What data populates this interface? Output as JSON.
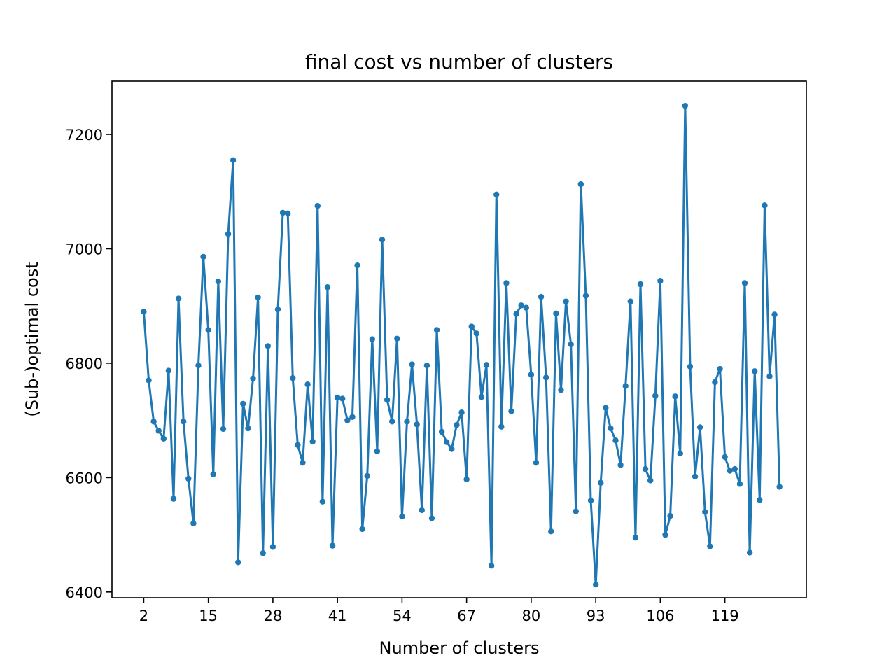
{
  "chart_data": {
    "type": "line",
    "title": "final cost vs number of clusters",
    "xlabel": "Number of clusters",
    "ylabel": "(Sub-)optimal cost",
    "x_start": 2,
    "x_step": 1,
    "xticks": [
      2,
      15,
      28,
      41,
      54,
      67,
      80,
      93,
      106,
      119
    ],
    "yticks": [
      6400,
      6600,
      6800,
      7000,
      7200
    ],
    "xlim": [
      -4.4,
      135.4
    ],
    "ylim": [
      6390,
      7293
    ],
    "grid": false,
    "legend": "none",
    "series": [
      {
        "color": "#1f77b4",
        "marker": "circle",
        "values": [
          6890,
          6770,
          6698,
          6682,
          6668,
          6787,
          6563,
          6913,
          6698,
          6598,
          6520,
          6796,
          6986,
          6858,
          6606,
          6943,
          6685,
          7026,
          7155,
          6452,
          6729,
          6686,
          6773,
          6915,
          6468,
          6830,
          6479,
          6894,
          7063,
          7062,
          6774,
          6657,
          6626,
          6763,
          6663,
          7075,
          6558,
          6933,
          6481,
          6740,
          6738,
          6700,
          6706,
          6971,
          6510,
          6603,
          6842,
          6646,
          7016,
          6736,
          6698,
          6843,
          6532,
          6698,
          6798,
          6693,
          6543,
          6796,
          6529,
          6858,
          6680,
          6662,
          6650,
          6692,
          6714,
          6597,
          6864,
          6852,
          6741,
          6797,
          6446,
          7095,
          6689,
          6940,
          6716,
          6886,
          6901,
          6897,
          6780,
          6626,
          6916,
          6775,
          6506,
          6887,
          6753,
          6908,
          6833,
          6541,
          7113,
          6918,
          6560,
          6413,
          6591,
          6722,
          6686,
          6665,
          6622,
          6760,
          6908,
          6495,
          6938,
          6615,
          6595,
          6743,
          6944,
          6500,
          6533,
          6742,
          6642,
          7250,
          6794,
          6602,
          6688,
          6540,
          6480,
          6767,
          6790,
          6636,
          6612,
          6615,
          6589,
          6940,
          6469,
          6786,
          6561,
          7076,
          6777,
          6885,
          6584
        ]
      }
    ]
  }
}
